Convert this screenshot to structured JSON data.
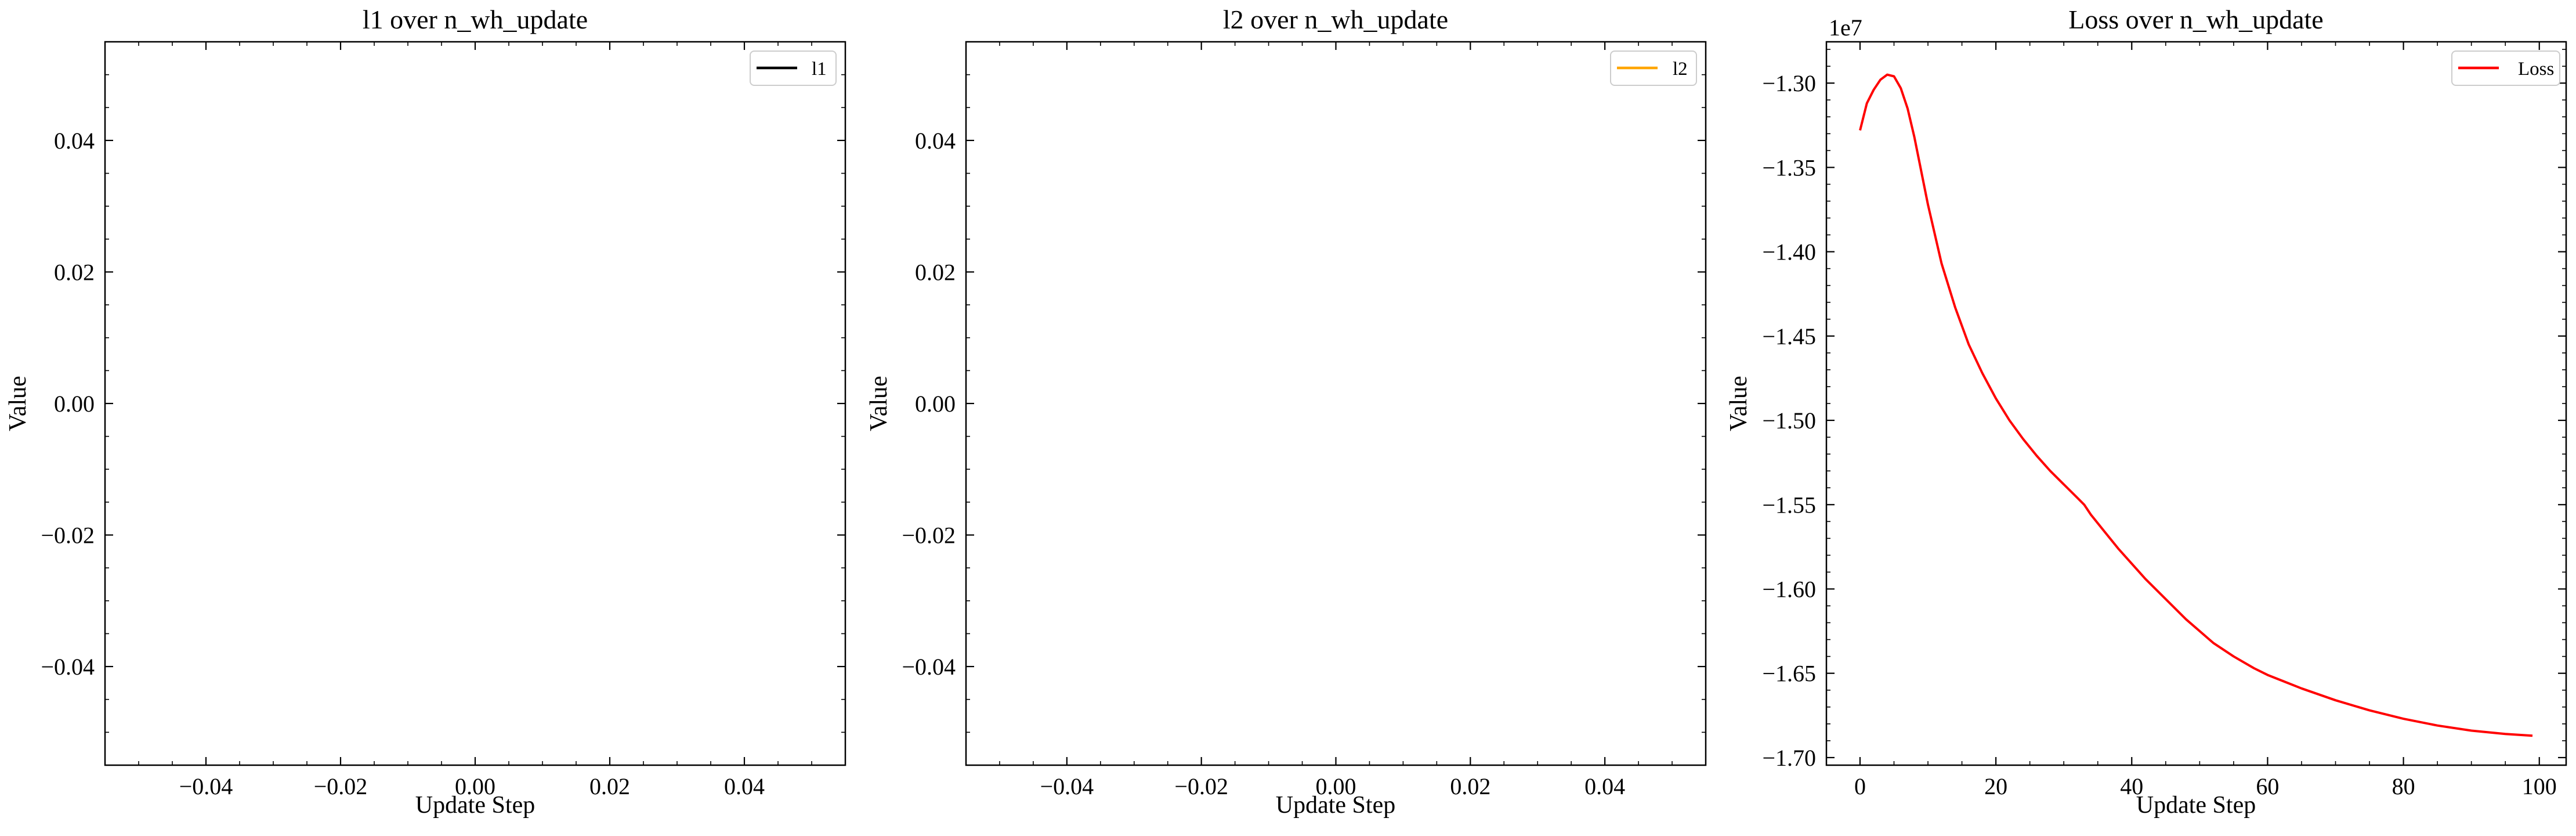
{
  "chart_data": [
    {
      "type": "line",
      "title": "l1 over n_wh_update",
      "xlabel": "Update Step",
      "ylabel": "Value",
      "xlim": [
        -0.055,
        0.055
      ],
      "ylim": [
        -0.055,
        0.055
      ],
      "xticks": [
        -0.04,
        -0.02,
        0.0,
        0.02,
        0.04
      ],
      "xtick_labels": [
        "−0.04",
        "−0.02",
        "0.00",
        "0.02",
        "0.04"
      ],
      "yticks": [
        -0.04,
        -0.02,
        0.0,
        0.02,
        0.04
      ],
      "ytick_labels": [
        "−0.04",
        "−0.02",
        "0.00",
        "0.02",
        "0.04"
      ],
      "legend_position": "top-right",
      "grid": false,
      "series": [
        {
          "name": "l1",
          "color": "#000000",
          "x": [],
          "y": []
        }
      ]
    },
    {
      "type": "line",
      "title": "l2 over n_wh_update",
      "xlabel": "Update Step",
      "ylabel": "Value",
      "xlim": [
        -0.055,
        0.055
      ],
      "ylim": [
        -0.055,
        0.055
      ],
      "xticks": [
        -0.04,
        -0.02,
        0.0,
        0.02,
        0.04
      ],
      "xtick_labels": [
        "−0.04",
        "−0.02",
        "0.00",
        "0.02",
        "0.04"
      ],
      "yticks": [
        -0.04,
        -0.02,
        0.0,
        0.02,
        0.04
      ],
      "ytick_labels": [
        "−0.04",
        "−0.02",
        "0.00",
        "0.02",
        "0.04"
      ],
      "legend_position": "top-right",
      "grid": false,
      "series": [
        {
          "name": "l2",
          "color": "#FFA500",
          "x": [],
          "y": []
        }
      ]
    },
    {
      "type": "line",
      "title": "Loss over n_wh_update",
      "xlabel": "Update Step",
      "ylabel": "Value",
      "y_offset_label": "1e7",
      "xlim": [
        -4.95,
        103.95
      ],
      "ylim": [
        -1.7045,
        -1.2755
      ],
      "xticks": [
        0,
        20,
        40,
        60,
        80,
        100
      ],
      "xtick_labels": [
        "0",
        "20",
        "40",
        "60",
        "80",
        "100"
      ],
      "yticks": [
        -1.7,
        -1.65,
        -1.6,
        -1.55,
        -1.5,
        -1.45,
        -1.4,
        -1.35,
        -1.3
      ],
      "ytick_labels": [
        "−1.70",
        "−1.65",
        "−1.60",
        "−1.55",
        "−1.50",
        "−1.45",
        "−1.40",
        "−1.35",
        "−1.30"
      ],
      "legend_position": "top-right",
      "grid": false,
      "series": [
        {
          "name": "Loss",
          "color": "#FF0000",
          "x": [
            0,
            1,
            2,
            3,
            4,
            5,
            6,
            7,
            8,
            9,
            10,
            12,
            14,
            16,
            18,
            20,
            22,
            24,
            26,
            28,
            30,
            32,
            33,
            34,
            36,
            38,
            40,
            42,
            45,
            48,
            50,
            52,
            55,
            58,
            60,
            65,
            70,
            75,
            80,
            85,
            90,
            95,
            99
          ],
          "y": [
            -1.328,
            -1.312,
            -1.304,
            -1.298,
            -1.295,
            -1.296,
            -1.303,
            -1.315,
            -1.332,
            -1.352,
            -1.372,
            -1.407,
            -1.433,
            -1.455,
            -1.472,
            -1.487,
            -1.5,
            -1.511,
            -1.521,
            -1.53,
            -1.538,
            -1.546,
            -1.55,
            -1.556,
            -1.566,
            -1.576,
            -1.585,
            -1.594,
            -1.606,
            -1.618,
            -1.625,
            -1.632,
            -1.64,
            -1.647,
            -1.651,
            -1.659,
            -1.666,
            -1.672,
            -1.677,
            -1.681,
            -1.684,
            -1.686,
            -1.687
          ]
        }
      ]
    }
  ]
}
